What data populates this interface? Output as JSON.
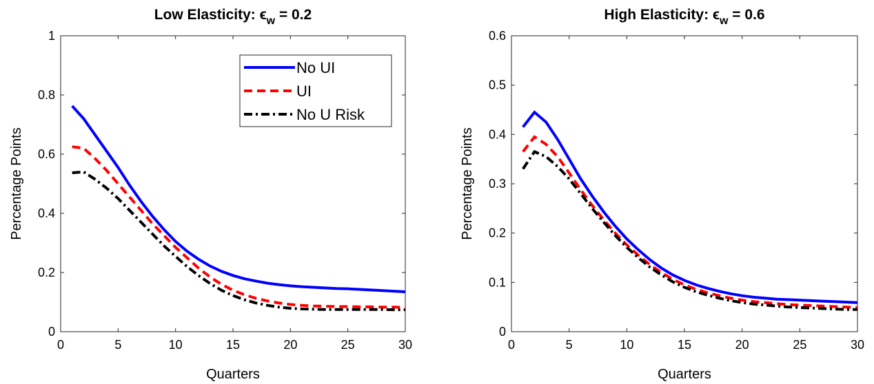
{
  "chart_data": [
    {
      "type": "line",
      "title": "Low Elasticity: ϵ",
      "title_subscript": "w",
      "title_suffix": " = 0.2",
      "x_label": "Quarters",
      "y_label": "Percentage Points",
      "x": [
        1,
        2,
        3,
        4,
        5,
        6,
        7,
        8,
        9,
        10,
        11,
        12,
        13,
        14,
        15,
        16,
        17,
        18,
        19,
        20,
        21,
        22,
        23,
        24,
        25,
        26,
        27,
        28,
        29,
        30
      ],
      "xlim": [
        0,
        30
      ],
      "xticks": [
        0,
        5,
        10,
        15,
        20,
        25,
        30
      ],
      "ylim": [
        0,
        1
      ],
      "yticks": [
        0,
        0.2,
        0.4,
        0.6,
        0.8,
        1
      ],
      "legend": "upper right",
      "series": [
        {
          "name": "No UI",
          "color": "#0000ff",
          "dash": "solid",
          "values": [
            0.763,
            0.72,
            0.665,
            0.61,
            0.555,
            0.495,
            0.44,
            0.39,
            0.345,
            0.305,
            0.272,
            0.245,
            0.222,
            0.204,
            0.19,
            0.179,
            0.171,
            0.164,
            0.159,
            0.155,
            0.152,
            0.15,
            0.148,
            0.146,
            0.145,
            0.143,
            0.141,
            0.139,
            0.137,
            0.135
          ]
        },
        {
          "name": "UI",
          "color": "#ff0000",
          "dash": "dashed",
          "values": [
            0.625,
            0.62,
            0.585,
            0.545,
            0.5,
            0.455,
            0.41,
            0.365,
            0.325,
            0.285,
            0.25,
            0.215,
            0.185,
            0.16,
            0.14,
            0.125,
            0.113,
            0.104,
            0.097,
            0.092,
            0.089,
            0.087,
            0.086,
            0.085,
            0.085,
            0.084,
            0.084,
            0.083,
            0.083,
            0.082
          ]
        },
        {
          "name": "No U Risk",
          "color": "#000000",
          "dash": "dashdot",
          "values": [
            0.537,
            0.54,
            0.515,
            0.485,
            0.45,
            0.41,
            0.37,
            0.33,
            0.29,
            0.255,
            0.22,
            0.19,
            0.163,
            0.14,
            0.122,
            0.108,
            0.097,
            0.089,
            0.083,
            0.079,
            0.077,
            0.076,
            0.075,
            0.075,
            0.075,
            0.075,
            0.075,
            0.075,
            0.074,
            0.074
          ]
        }
      ]
    },
    {
      "type": "line",
      "title": "High Elasticity: ϵ",
      "title_subscript": "w",
      "title_suffix": " = 0.6",
      "x_label": "Quarters",
      "y_label": "Percentage Points",
      "x": [
        1,
        2,
        3,
        4,
        5,
        6,
        7,
        8,
        9,
        10,
        11,
        12,
        13,
        14,
        15,
        16,
        17,
        18,
        19,
        20,
        21,
        22,
        23,
        24,
        25,
        26,
        27,
        28,
        29,
        30
      ],
      "xlim": [
        0,
        30
      ],
      "xticks": [
        0,
        5,
        10,
        15,
        20,
        25,
        30
      ],
      "ylim": [
        0,
        0.6
      ],
      "yticks": [
        0,
        0.1,
        0.2,
        0.3,
        0.4,
        0.5,
        0.6
      ],
      "series": [
        {
          "color": "#0000ff",
          "dash": "solid",
          "values": [
            0.415,
            0.445,
            0.425,
            0.39,
            0.35,
            0.31,
            0.275,
            0.243,
            0.214,
            0.188,
            0.166,
            0.146,
            0.129,
            0.115,
            0.104,
            0.095,
            0.088,
            0.082,
            0.077,
            0.073,
            0.07,
            0.068,
            0.066,
            0.065,
            0.064,
            0.063,
            0.062,
            0.061,
            0.06,
            0.059
          ]
        },
        {
          "color": "#ff0000",
          "dash": "dashed",
          "values": [
            0.365,
            0.395,
            0.38,
            0.355,
            0.322,
            0.288,
            0.256,
            0.227,
            0.2,
            0.176,
            0.155,
            0.136,
            0.12,
            0.106,
            0.095,
            0.086,
            0.079,
            0.073,
            0.068,
            0.064,
            0.061,
            0.059,
            0.057,
            0.055,
            0.054,
            0.053,
            0.052,
            0.051,
            0.05,
            0.049
          ]
        },
        {
          "color": "#000000",
          "dash": "dashdot",
          "values": [
            0.33,
            0.365,
            0.355,
            0.335,
            0.31,
            0.28,
            0.25,
            0.222,
            0.195,
            0.171,
            0.15,
            0.131,
            0.115,
            0.101,
            0.09,
            0.081,
            0.074,
            0.068,
            0.063,
            0.059,
            0.056,
            0.054,
            0.052,
            0.05,
            0.049,
            0.048,
            0.047,
            0.046,
            0.045,
            0.045
          ]
        }
      ]
    }
  ]
}
